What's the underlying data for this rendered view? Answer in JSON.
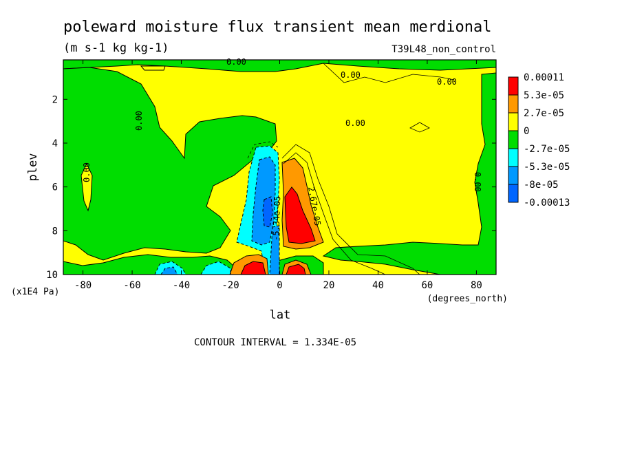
{
  "chart_data": {
    "type": "heatmap",
    "title": "poleward moisture flux transient mean merdional",
    "subtitle": "(m s-1 kg kg-1)",
    "run_label": "T39L48_non_control",
    "xlabel": "lat",
    "x_units": "(degrees_north)",
    "ylabel": "plev",
    "y_units": "(x1E4 Pa)",
    "x_ticks": [
      "-80",
      "-60",
      "-40",
      "-20",
      "0",
      "20",
      "40",
      "60",
      "80"
    ],
    "y_ticks": [
      "2",
      "4",
      "6",
      "8",
      "10"
    ],
    "xlim": [
      -88,
      88
    ],
    "ylim": [
      10,
      0.2
    ],
    "colorbar": {
      "labels": [
        "0.00011",
        "5.3e-05",
        "2.7e-05",
        "0",
        "-2.7e-05",
        "-5.3e-05",
        "-8e-05",
        "-0.00013"
      ],
      "colors": [
        "#ff0000",
        "#ff9900",
        "#ffff00",
        "#00dd00",
        "#00ffff",
        "#0099ff",
        "#0066ff"
      ]
    },
    "contour_labels": [
      "0.00",
      "0.00",
      "0.00",
      "0.00",
      "0.00",
      "0.00",
      "0.00",
      "2.67e-05",
      "-5.34e-05"
    ],
    "footer": "CONTOUR INTERVAL = 1.334E-05"
  }
}
